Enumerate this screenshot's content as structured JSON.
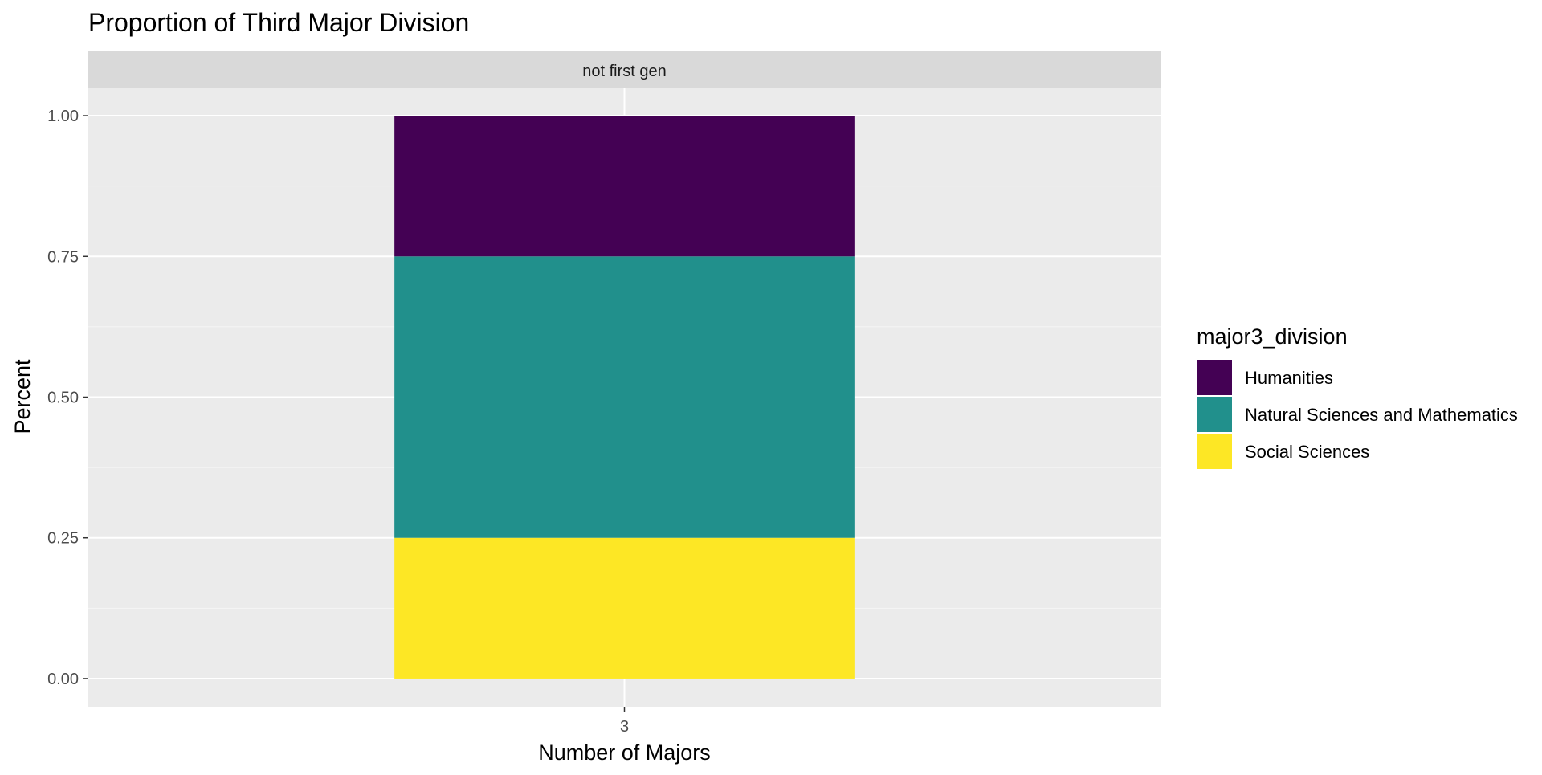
{
  "chart_data": {
    "type": "bar",
    "stacked": true,
    "title": "Proportion of Third Major Division",
    "facet_label": "not first gen",
    "xlabel": "Number of Majors",
    "ylabel": "Percent",
    "categories": [
      "3"
    ],
    "ylim": [
      -0.05,
      1.05
    ],
    "yticks": [
      0.0,
      0.25,
      0.5,
      0.75,
      1.0
    ],
    "ytick_labels": [
      "0.00",
      "0.25",
      "0.50",
      "0.75",
      "1.00"
    ],
    "grid": true,
    "legend": {
      "title": "major3_division",
      "position": "right"
    },
    "series": [
      {
        "name": "Social Sciences",
        "values": [
          0.25
        ],
        "color": "#FDE725"
      },
      {
        "name": "Natural Sciences and Mathematics",
        "values": [
          0.5
        ],
        "color": "#21908C"
      },
      {
        "name": "Humanities",
        "values": [
          0.25
        ],
        "color": "#440154"
      }
    ],
    "legend_order": [
      "Humanities",
      "Natural Sciences and Mathematics",
      "Social Sciences"
    ]
  },
  "colors": {
    "panel_bg": "#EBEBEB",
    "strip_bg": "#D9D9D9",
    "grid_major": "#FFFFFF",
    "grid_minor": "#F5F5F5",
    "axis_text": "#4D4D4D",
    "text": "#000000"
  }
}
